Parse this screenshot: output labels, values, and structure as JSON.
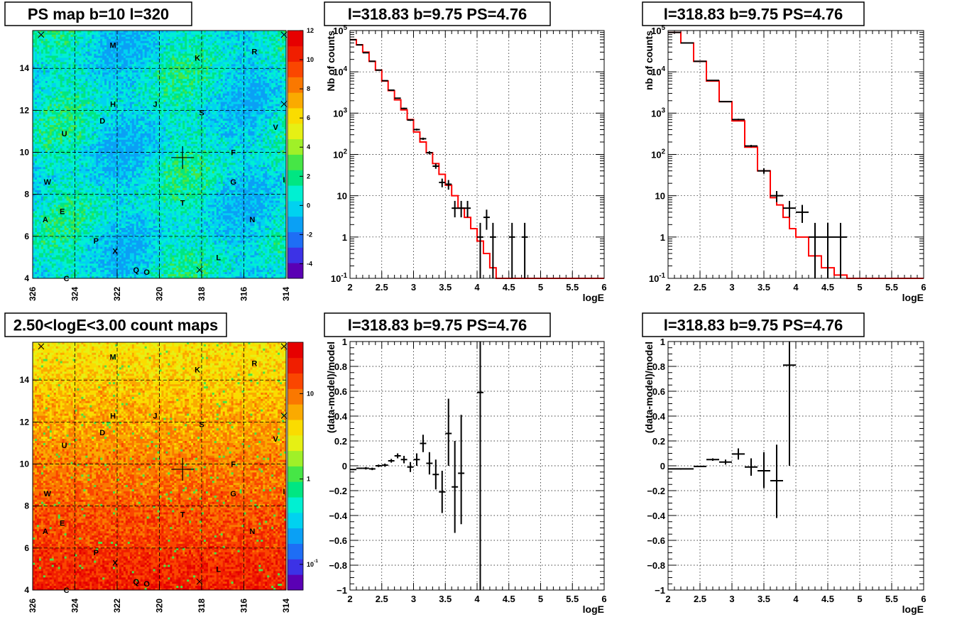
{
  "colors": {
    "data": "#000000",
    "model": "#ff0000",
    "grid": "#000000",
    "palette": [
      "#5a00b4",
      "#3c32e6",
      "#1e6ef5",
      "#0aa0f5",
      "#00d2f0",
      "#00f0d2",
      "#00e682",
      "#46e646",
      "#a0f028",
      "#e6f014",
      "#fadc00",
      "#faaa00",
      "#fa7800",
      "#fa4600",
      "#f01e00",
      "#e60000"
    ]
  },
  "map_labels": [
    {
      "t": "M",
      "l": 322.2,
      "b": 15.1
    },
    {
      "t": "R",
      "l": 315.5,
      "b": 14.8
    },
    {
      "t": "K",
      "l": 318.2,
      "b": 14.5
    },
    {
      "t": "H",
      "l": 322.2,
      "b": 12.3
    },
    {
      "t": "J",
      "l": 320.2,
      "b": 12.3
    },
    {
      "t": "S",
      "l": 318.0,
      "b": 11.9
    },
    {
      "t": "D",
      "l": 322.7,
      "b": 11.5
    },
    {
      "t": "V",
      "l": 314.5,
      "b": 11.2
    },
    {
      "t": "U",
      "l": 324.5,
      "b": 10.9
    },
    {
      "t": "F",
      "l": 316.5,
      "b": 10.0
    },
    {
      "t": "W",
      "l": 325.3,
      "b": 8.6
    },
    {
      "t": "G",
      "l": 316.5,
      "b": 8.6
    },
    {
      "t": "I",
      "l": 314.1,
      "b": 8.7
    },
    {
      "t": "T",
      "l": 318.9,
      "b": 7.6
    },
    {
      "t": "E",
      "l": 324.6,
      "b": 7.2
    },
    {
      "t": "A",
      "l": 325.4,
      "b": 6.8
    },
    {
      "t": "N",
      "l": 315.6,
      "b": 6.8
    },
    {
      "t": "P",
      "l": 323.0,
      "b": 5.8
    },
    {
      "t": "X",
      "l": 322.1,
      "b": 5.3
    },
    {
      "t": "L",
      "l": 317.2,
      "b": 5.0
    },
    {
      "t": "Q",
      "l": 321.1,
      "b": 4.4
    },
    {
      "t": "O",
      "l": 320.6,
      "b": 4.3
    },
    {
      "t": "C",
      "l": 324.4,
      "b": 4.0
    }
  ],
  "map_crosses": [
    {
      "l": 325.6,
      "b": 15.6
    },
    {
      "l": 314.1,
      "b": 15.6
    },
    {
      "l": 314.1,
      "b": 12.3
    },
    {
      "l": 318.1,
      "b": 4.4
    }
  ],
  "charts": [
    {
      "name": "ps-map",
      "title": "PS map b=10 l=320",
      "xlim": [
        326,
        314
      ],
      "ylim": [
        4,
        15.8
      ],
      "xticks": [
        326,
        324,
        322,
        320,
        318,
        316,
        314
      ],
      "yticks": [
        4,
        6,
        8,
        10,
        12,
        14
      ],
      "colorbar": {
        "type": "linear",
        "min": -5,
        "max": 12,
        "ticks": [
          12,
          10,
          8,
          6,
          4,
          2,
          0,
          -2,
          -4
        ]
      },
      "source_marker": {
        "l": 318.9,
        "b": 9.75
      }
    },
    {
      "name": "spectrum-a",
      "title": "l=318.83 b=9.75 PS=4.76",
      "xlabel": "logE",
      "ylabel": "Nb of counts",
      "xlim": [
        2,
        6
      ],
      "ylim": [
        0.1,
        100000
      ],
      "ylog": true,
      "xticks": [
        "2",
        "2.5",
        "3",
        "3.5",
        "4",
        "4.5",
        "5",
        "5.5",
        "6"
      ],
      "yticks": [
        "10^-1",
        "1",
        "10",
        "10^2",
        "10^3",
        "10^4",
        "10^5"
      ],
      "model_edges": [
        2,
        2.1,
        2.2,
        2.3,
        2.4,
        2.5,
        2.6,
        2.7,
        2.8,
        2.9,
        3.0,
        3.1,
        3.2,
        3.3,
        3.4,
        3.5,
        3.6,
        3.7,
        3.8,
        3.9,
        4.0,
        4.1,
        4.2,
        4.3,
        4.4,
        6.0
      ],
      "model_values": [
        60000,
        45000,
        30000,
        18000,
        11000,
        6000,
        3500,
        2100,
        1200,
        700,
        350,
        200,
        110,
        60,
        33,
        18,
        10,
        5,
        3,
        1.6,
        0.8,
        0.4,
        0.18,
        0.1,
        0.1
      ],
      "points": [
        {
          "x": 2.05,
          "y": 60000,
          "xe": 0.05,
          "ylo": 58000,
          "yhi": 62000
        },
        {
          "x": 2.15,
          "y": 45000,
          "xe": 0.05,
          "ylo": 44000,
          "yhi": 46000
        },
        {
          "x": 2.25,
          "y": 29000,
          "xe": 0.05,
          "ylo": 28500,
          "yhi": 29500
        },
        {
          "x": 2.35,
          "y": 18000,
          "xe": 0.05,
          "ylo": 17700,
          "yhi": 18300
        },
        {
          "x": 2.45,
          "y": 11000,
          "xe": 0.05,
          "ylo": 10800,
          "yhi": 11200
        },
        {
          "x": 2.55,
          "y": 6100,
          "xe": 0.05,
          "ylo": 6000,
          "yhi": 6200
        },
        {
          "x": 2.65,
          "y": 3600,
          "xe": 0.05,
          "ylo": 3500,
          "yhi": 3700
        },
        {
          "x": 2.75,
          "y": 2300,
          "xe": 0.05,
          "ylo": 2250,
          "yhi": 2350
        },
        {
          "x": 2.85,
          "y": 1300,
          "xe": 0.05,
          "ylo": 1250,
          "yhi": 1350
        },
        {
          "x": 2.95,
          "y": 680,
          "xe": 0.05,
          "ylo": 650,
          "yhi": 710
        },
        {
          "x": 3.05,
          "y": 400,
          "xe": 0.05,
          "ylo": 380,
          "yhi": 420
        },
        {
          "x": 3.15,
          "y": 240,
          "xe": 0.05,
          "ylo": 225,
          "yhi": 255
        },
        {
          "x": 3.25,
          "y": 110,
          "xe": 0.05,
          "ylo": 100,
          "yhi": 120
        },
        {
          "x": 3.35,
          "y": 52,
          "xe": 0.05,
          "ylo": 45,
          "yhi": 60
        },
        {
          "x": 3.45,
          "y": 21,
          "xe": 0.05,
          "ylo": 16,
          "yhi": 26
        },
        {
          "x": 3.55,
          "y": 19,
          "xe": 0.05,
          "ylo": 14,
          "yhi": 24
        },
        {
          "x": 3.65,
          "y": 5,
          "xe": 0.05,
          "ylo": 3,
          "yhi": 7.5
        },
        {
          "x": 3.75,
          "y": 5,
          "xe": 0.05,
          "ylo": 3,
          "yhi": 7.5
        },
        {
          "x": 3.85,
          "y": 5,
          "xe": 0.05,
          "ylo": 3,
          "yhi": 7.5
        },
        {
          "x": 4.05,
          "y": 1,
          "xe": 0.05,
          "ylo": 0.1,
          "yhi": 2.2
        },
        {
          "x": 4.15,
          "y": 3,
          "xe": 0.05,
          "ylo": 1.5,
          "yhi": 4.6
        },
        {
          "x": 4.25,
          "y": 1,
          "xe": 0.05,
          "ylo": 0.1,
          "yhi": 2.2
        },
        {
          "x": 4.55,
          "y": 1,
          "xe": 0.05,
          "ylo": 0.1,
          "yhi": 2.2
        },
        {
          "x": 4.75,
          "y": 1,
          "xe": 0.05,
          "ylo": 0.1,
          "yhi": 2.2
        }
      ]
    },
    {
      "name": "spectrum-b",
      "title": "l=318.83 b=9.75 PS=4.76",
      "xlabel": "logE",
      "ylabel": "nb of counts",
      "xlim": [
        2,
        6
      ],
      "ylim": [
        0.1,
        100000
      ],
      "ylog": true,
      "xticks": [
        "2",
        "2.5",
        "3",
        "3.5",
        "4",
        "4.5",
        "5",
        "5.5",
        "6"
      ],
      "yticks": [
        "10^-1",
        "1",
        "10",
        "10^2",
        "10^3",
        "10^4",
        "10^5"
      ],
      "model_edges": [
        2,
        2.2,
        2.4,
        2.6,
        2.8,
        3.0,
        3.2,
        3.4,
        3.6,
        3.7,
        3.8,
        3.9,
        4.0,
        4.2,
        4.4,
        4.6,
        4.8,
        6.0
      ],
      "model_values": [
        90000,
        50000,
        18000,
        6000,
        1900,
        650,
        150,
        40,
        9,
        6,
        3,
        1.6,
        1,
        0.35,
        0.18,
        0.12,
        0.1
      ],
      "points": [
        {
          "x": 2.1,
          "y": 90000,
          "xe": 0.1,
          "ylo": 88000,
          "yhi": 92000
        },
        {
          "x": 2.3,
          "y": 50000,
          "xe": 0.1,
          "ylo": 49000,
          "yhi": 51000
        },
        {
          "x": 2.5,
          "y": 18000,
          "xe": 0.1,
          "ylo": 17700,
          "yhi": 18300
        },
        {
          "x": 2.7,
          "y": 6200,
          "xe": 0.1,
          "ylo": 6050,
          "yhi": 6350
        },
        {
          "x": 2.9,
          "y": 1900,
          "xe": 0.1,
          "ylo": 1850,
          "yhi": 1950
        },
        {
          "x": 3.1,
          "y": 700,
          "xe": 0.1,
          "ylo": 670,
          "yhi": 730
        },
        {
          "x": 3.3,
          "y": 160,
          "xe": 0.1,
          "ylo": 150,
          "yhi": 170
        },
        {
          "x": 3.5,
          "y": 40,
          "xe": 0.1,
          "ylo": 34,
          "yhi": 46
        },
        {
          "x": 3.7,
          "y": 10,
          "xe": 0.1,
          "ylo": 7,
          "yhi": 13
        },
        {
          "x": 3.9,
          "y": 5,
          "xe": 0.1,
          "ylo": 3,
          "yhi": 7.5
        },
        {
          "x": 4.1,
          "y": 4,
          "xe": 0.1,
          "ylo": 2.2,
          "yhi": 6
        },
        {
          "x": 4.3,
          "y": 1,
          "xe": 0.1,
          "ylo": 0.1,
          "yhi": 2.2
        },
        {
          "x": 4.5,
          "y": 1,
          "xe": 0.1,
          "ylo": 0.1,
          "yhi": 2.2
        },
        {
          "x": 4.7,
          "y": 1,
          "xe": 0.1,
          "ylo": 0.1,
          "yhi": 2.2
        }
      ]
    },
    {
      "name": "count-map",
      "title": "2.50<logE<3.00 count maps",
      "xlim": [
        326,
        314
      ],
      "ylim": [
        4,
        15.8
      ],
      "xticks": [
        326,
        324,
        322,
        320,
        318,
        316,
        314
      ],
      "yticks": [
        4,
        6,
        8,
        10,
        12,
        14
      ],
      "colorbar": {
        "type": "log",
        "min": 0.05,
        "max": 40,
        "ticks": [
          "10",
          "1",
          "10^-1"
        ]
      },
      "source_marker": {
        "l": 318.9,
        "b": 9.75
      }
    },
    {
      "name": "residual-a",
      "title": "l=318.83 b=9.75 PS=4.76",
      "xlabel": "logE",
      "ylabel": "(data-model)/model",
      "xlim": [
        2,
        6
      ],
      "ylim": [
        -1,
        1
      ],
      "xticks": [
        "2",
        "2.5",
        "3",
        "3.5",
        "4",
        "4.5",
        "5",
        "5.5",
        "6"
      ],
      "yticks": [
        "1",
        "0.8",
        "0.6",
        "0.4",
        "0.2",
        "0",
        "−0.2",
        "−0.4",
        "−0.6",
        "−0.8",
        "−1"
      ],
      "points": [
        {
          "x": 2.05,
          "y": -0.03,
          "xe": 0.05,
          "ylo": -0.035,
          "yhi": -0.025
        },
        {
          "x": 2.15,
          "y": -0.02,
          "xe": 0.05,
          "ylo": -0.025,
          "yhi": -0.015
        },
        {
          "x": 2.25,
          "y": -0.02,
          "xe": 0.05,
          "ylo": -0.03,
          "yhi": -0.01
        },
        {
          "x": 2.35,
          "y": -0.025,
          "xe": 0.05,
          "ylo": -0.035,
          "yhi": -0.015
        },
        {
          "x": 2.45,
          "y": 0.0,
          "xe": 0.05,
          "ylo": -0.01,
          "yhi": 0.01
        },
        {
          "x": 2.55,
          "y": 0.005,
          "xe": 0.05,
          "ylo": -0.008,
          "yhi": 0.018
        },
        {
          "x": 2.65,
          "y": 0.04,
          "xe": 0.05,
          "ylo": 0.025,
          "yhi": 0.055
        },
        {
          "x": 2.75,
          "y": 0.08,
          "xe": 0.05,
          "ylo": 0.06,
          "yhi": 0.1
        },
        {
          "x": 2.85,
          "y": 0.05,
          "xe": 0.05,
          "ylo": 0.02,
          "yhi": 0.08
        },
        {
          "x": 2.95,
          "y": -0.01,
          "xe": 0.05,
          "ylo": -0.05,
          "yhi": 0.03
        },
        {
          "x": 3.05,
          "y": 0.05,
          "xe": 0.05,
          "ylo": 0.0,
          "yhi": 0.1
        },
        {
          "x": 3.15,
          "y": 0.18,
          "xe": 0.05,
          "ylo": 0.11,
          "yhi": 0.25
        },
        {
          "x": 3.25,
          "y": 0.02,
          "xe": 0.05,
          "ylo": -0.07,
          "yhi": 0.11
        },
        {
          "x": 3.35,
          "y": -0.07,
          "xe": 0.05,
          "ylo": -0.19,
          "yhi": 0.05
        },
        {
          "x": 3.45,
          "y": -0.21,
          "xe": 0.05,
          "ylo": -0.38,
          "yhi": -0.04
        },
        {
          "x": 3.55,
          "y": 0.26,
          "xe": 0.05,
          "ylo": 0.0,
          "yhi": 0.54
        },
        {
          "x": 3.65,
          "y": -0.17,
          "xe": 0.05,
          "ylo": -0.54,
          "yhi": 0.2
        },
        {
          "x": 3.75,
          "y": -0.06,
          "xe": 0.05,
          "ylo": -0.47,
          "yhi": 0.41
        },
        {
          "x": 4.05,
          "y": 0.59,
          "xe": 0.05,
          "ylo": -1.0,
          "yhi": 1.0
        }
      ]
    },
    {
      "name": "residual-b",
      "title": "l=318.83 b=9.75 PS=4.76",
      "xlabel": "logE",
      "ylabel": "(data-model)/model",
      "xlim": [
        2,
        6
      ],
      "ylim": [
        -1,
        1
      ],
      "xticks": [
        "2",
        "2.5",
        "3",
        "3.5",
        "4",
        "4.5",
        "5",
        "5.5",
        "6"
      ],
      "yticks": [
        "1",
        "0.8",
        "0.6",
        "0.4",
        "0.2",
        "0",
        "−0.2",
        "−0.4",
        "−0.6",
        "−0.8",
        "−1"
      ],
      "points": [
        {
          "x": 2.2,
          "y": -0.025,
          "xe": 0.2,
          "ylo": -0.03,
          "yhi": -0.02
        },
        {
          "x": 2.5,
          "y": -0.005,
          "xe": 0.1,
          "ylo": -0.01,
          "yhi": 0.0
        },
        {
          "x": 2.7,
          "y": 0.05,
          "xe": 0.1,
          "ylo": 0.04,
          "yhi": 0.06
        },
        {
          "x": 2.9,
          "y": 0.03,
          "xe": 0.1,
          "ylo": 0.01,
          "yhi": 0.05
        },
        {
          "x": 3.1,
          "y": 0.095,
          "xe": 0.1,
          "ylo": 0.05,
          "yhi": 0.14
        },
        {
          "x": 3.3,
          "y": -0.01,
          "xe": 0.1,
          "ylo": -0.08,
          "yhi": 0.06
        },
        {
          "x": 3.5,
          "y": -0.04,
          "xe": 0.1,
          "ylo": -0.18,
          "yhi": 0.11
        },
        {
          "x": 3.7,
          "y": -0.12,
          "xe": 0.1,
          "ylo": -0.42,
          "yhi": 0.17
        },
        {
          "x": 3.9,
          "y": 0.81,
          "xe": 0.1,
          "ylo": 0.0,
          "yhi": 1.0
        }
      ]
    }
  ]
}
